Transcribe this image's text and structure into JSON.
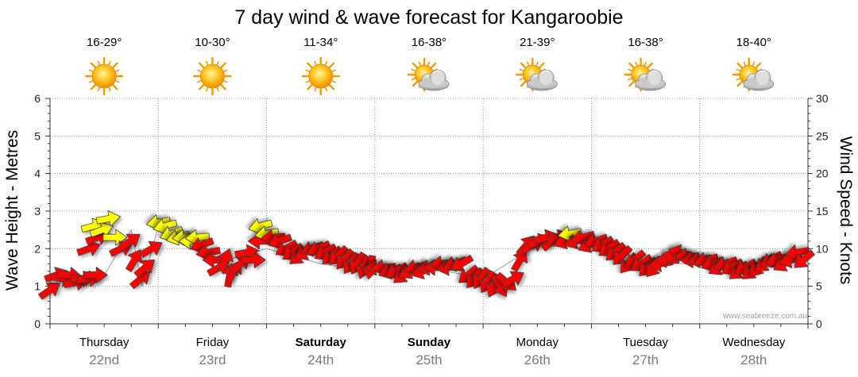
{
  "chart_data": {
    "type": "line",
    "title": "7 day wind & wave forecast for Kangaroobie",
    "ylabel_left": "Wave Height - Metres",
    "ylabel_right": "Wind Speed - Knots",
    "ylim_left": [
      0,
      6
    ],
    "ylim_right": [
      0,
      30
    ],
    "yticks_left": [
      "0",
      "1",
      "2",
      "3",
      "4",
      "5",
      "6"
    ],
    "yticks_right": [
      "0",
      "5",
      "10",
      "15",
      "20",
      "25",
      "30"
    ],
    "watermark": "www.seabreeze.com.au",
    "days": [
      {
        "name": "Thursday",
        "date": "22nd",
        "temp": "16-29°",
        "icon": "sun-icon",
        "weekend": false
      },
      {
        "name": "Friday",
        "date": "23rd",
        "temp": "10-30°",
        "icon": "sun-icon",
        "weekend": false
      },
      {
        "name": "Saturday",
        "date": "24th",
        "temp": "11-34°",
        "icon": "sun-icon",
        "weekend": true
      },
      {
        "name": "Sunday",
        "date": "25th",
        "temp": "16-38°",
        "icon": "sun-cloud-icon",
        "weekend": true
      },
      {
        "name": "Monday",
        "date": "26th",
        "temp": "21-39°",
        "icon": "sun-cloud-icon",
        "weekend": false
      },
      {
        "name": "Tuesday",
        "date": "27th",
        "temp": "16-38°",
        "icon": "sun-cloud-icon",
        "weekend": false
      },
      {
        "name": "Wednesday",
        "date": "28th",
        "temp": "18-40°",
        "icon": "sun-cloud-icon",
        "weekend": false
      }
    ],
    "wave_series": {
      "name": "Wave Height (m)",
      "x": [
        0,
        0.15,
        0.35,
        0.5,
        0.75,
        0.85,
        1.0,
        1.2,
        1.5,
        2.0,
        2.5,
        3.0,
        3.5,
        4.0,
        4.5,
        5.0,
        5.5,
        6.0,
        6.5,
        7.0
      ],
      "values": [
        0.9,
        1.4,
        1.1,
        1.3,
        2.5,
        1.0,
        2.6,
        2.3,
        1.6,
        2.0,
        1.6,
        1.4,
        1.5,
        1.2,
        2.1,
        2.0,
        1.6,
        1.6,
        1.4,
        1.7
      ]
    },
    "wind_series": {
      "name": "Wind Speed (knots)",
      "points": [
        {
          "day": 0.0,
          "speed": 4.5,
          "dir": -35,
          "color": "red"
        },
        {
          "day": 0.06,
          "speed": 6.5,
          "dir": -20,
          "color": "red"
        },
        {
          "day": 0.12,
          "speed": 6.0,
          "dir": 10,
          "color": "red"
        },
        {
          "day": 0.18,
          "speed": 6.5,
          "dir": 5,
          "color": "red"
        },
        {
          "day": 0.24,
          "speed": 5.5,
          "dir": -10,
          "color": "red"
        },
        {
          "day": 0.3,
          "speed": 6.0,
          "dir": 0,
          "color": "red"
        },
        {
          "day": 0.36,
          "speed": 6.0,
          "dir": -5,
          "color": "red"
        },
        {
          "day": 0.42,
          "speed": 6.5,
          "dir": 0,
          "color": "red"
        },
        {
          "day": 0.36,
          "speed": 10.0,
          "dir": -20,
          "color": "red"
        },
        {
          "day": 0.44,
          "speed": 11.5,
          "dir": -20,
          "color": "red"
        },
        {
          "day": 0.4,
          "speed": 13.0,
          "dir": -15,
          "color": "yellow"
        },
        {
          "day": 0.48,
          "speed": 12.5,
          "dir": -20,
          "color": "yellow"
        },
        {
          "day": 0.54,
          "speed": 14.0,
          "dir": -10,
          "color": "yellow"
        },
        {
          "day": 0.6,
          "speed": 11.5,
          "dir": 0,
          "color": "yellow"
        },
        {
          "day": 0.66,
          "speed": 10.0,
          "dir": -25,
          "color": "red"
        },
        {
          "day": 0.74,
          "speed": 11.0,
          "dir": -35,
          "color": "red"
        },
        {
          "day": 0.78,
          "speed": 8.5,
          "dir": -60,
          "color": "red"
        },
        {
          "day": 0.84,
          "speed": 6.0,
          "dir": -40,
          "color": "red"
        },
        {
          "day": 0.88,
          "speed": 7.5,
          "dir": -40,
          "color": "red"
        },
        {
          "day": 0.94,
          "speed": 10.0,
          "dir": -30,
          "color": "red"
        },
        {
          "day": 1.0,
          "speed": 13.5,
          "dir": 170,
          "color": "yellow"
        },
        {
          "day": 1.06,
          "speed": 13.0,
          "dir": 165,
          "color": "yellow"
        },
        {
          "day": 1.12,
          "speed": 12.0,
          "dir": 160,
          "color": "yellow"
        },
        {
          "day": 1.18,
          "speed": 11.5,
          "dir": 165,
          "color": "yellow"
        },
        {
          "day": 1.24,
          "speed": 11.5,
          "dir": 175,
          "color": "yellow"
        },
        {
          "day": 1.3,
          "speed": 11.0,
          "dir": 180,
          "color": "yellow"
        },
        {
          "day": 1.36,
          "speed": 11.5,
          "dir": 175,
          "color": "yellow"
        },
        {
          "day": 1.4,
          "speed": 10.5,
          "dir": 160,
          "color": "red"
        },
        {
          "day": 1.46,
          "speed": 9.5,
          "dir": 170,
          "color": "red"
        },
        {
          "day": 1.52,
          "speed": 8.5,
          "dir": 180,
          "color": "red"
        },
        {
          "day": 1.56,
          "speed": 7.5,
          "dir": -30,
          "color": "red"
        },
        {
          "day": 1.62,
          "speed": 8.5,
          "dir": -70,
          "color": "red"
        },
        {
          "day": 1.66,
          "speed": 6.5,
          "dir": -80,
          "color": "red"
        },
        {
          "day": 1.7,
          "speed": 7.0,
          "dir": -60,
          "color": "red"
        },
        {
          "day": 1.76,
          "speed": 8.0,
          "dir": -40,
          "color": "red"
        },
        {
          "day": 1.82,
          "speed": 9.5,
          "dir": -10,
          "color": "red"
        },
        {
          "day": 1.88,
          "speed": 8.5,
          "dir": 0,
          "color": "red"
        },
        {
          "day": 1.94,
          "speed": 11.0,
          "dir": 180,
          "color": "red"
        },
        {
          "day": 1.94,
          "speed": 13.0,
          "dir": 165,
          "color": "yellow"
        },
        {
          "day": 2.0,
          "speed": 12.0,
          "dir": 170,
          "color": "yellow"
        },
        {
          "day": 2.06,
          "speed": 11.5,
          "dir": 175,
          "color": "red"
        },
        {
          "day": 2.12,
          "speed": 11.0,
          "dir": 160,
          "color": "red"
        },
        {
          "day": 2.18,
          "speed": 10.0,
          "dir": 150,
          "color": "red"
        },
        {
          "day": 2.24,
          "speed": 9.5,
          "dir": 145,
          "color": "red"
        },
        {
          "day": 2.3,
          "speed": 9.0,
          "dir": 140,
          "color": "red"
        },
        {
          "day": 2.36,
          "speed": 9.5,
          "dir": 150,
          "color": "red"
        },
        {
          "day": 2.42,
          "speed": 10.0,
          "dir": 160,
          "color": "red"
        },
        {
          "day": 2.48,
          "speed": 10.0,
          "dir": 155,
          "color": "red"
        },
        {
          "day": 2.54,
          "speed": 9.5,
          "dir": 150,
          "color": "red"
        },
        {
          "day": 2.6,
          "speed": 9.0,
          "dir": 140,
          "color": "red"
        },
        {
          "day": 2.66,
          "speed": 9.0,
          "dir": 135,
          "color": "red"
        },
        {
          "day": 2.72,
          "speed": 8.5,
          "dir": 130,
          "color": "red"
        },
        {
          "day": 2.78,
          "speed": 8.0,
          "dir": 125,
          "color": "red"
        },
        {
          "day": 2.84,
          "speed": 8.0,
          "dir": 120,
          "color": "red"
        },
        {
          "day": 2.9,
          "speed": 7.5,
          "dir": 110,
          "color": "red"
        },
        {
          "day": 2.96,
          "speed": 7.5,
          "dir": 100,
          "color": "red"
        },
        {
          "day": 3.02,
          "speed": 7.5,
          "dir": 180,
          "color": "red"
        },
        {
          "day": 3.08,
          "speed": 7.5,
          "dir": 175,
          "color": "red"
        },
        {
          "day": 3.14,
          "speed": 7.0,
          "dir": 160,
          "color": "red"
        },
        {
          "day": 3.2,
          "speed": 7.0,
          "dir": 150,
          "color": "red"
        },
        {
          "day": 3.26,
          "speed": 6.5,
          "dir": 140,
          "color": "red"
        },
        {
          "day": 3.32,
          "speed": 7.0,
          "dir": 150,
          "color": "red"
        },
        {
          "day": 3.38,
          "speed": 7.5,
          "dir": 165,
          "color": "red"
        },
        {
          "day": 3.44,
          "speed": 7.0,
          "dir": 160,
          "color": "red"
        },
        {
          "day": 3.5,
          "speed": 7.5,
          "dir": 170,
          "color": "red"
        },
        {
          "day": 3.56,
          "speed": 7.5,
          "dir": 180,
          "color": "red"
        },
        {
          "day": 3.62,
          "speed": 8.0,
          "dir": 175,
          "color": "red"
        },
        {
          "day": 3.68,
          "speed": 7.5,
          "dir": 170,
          "color": "red"
        },
        {
          "day": 3.74,
          "speed": 8.0,
          "dir": 160,
          "color": "red"
        },
        {
          "day": 3.8,
          "speed": 8.0,
          "dir": 150,
          "color": "red"
        },
        {
          "day": 3.86,
          "speed": 6.5,
          "dir": 140,
          "color": "red"
        },
        {
          "day": 3.92,
          "speed": 6.0,
          "dir": 130,
          "color": "red"
        },
        {
          "day": 3.98,
          "speed": 6.0,
          "dir": 125,
          "color": "red"
        },
        {
          "day": 4.04,
          "speed": 5.5,
          "dir": 120,
          "color": "red"
        },
        {
          "day": 4.1,
          "speed": 5.0,
          "dir": 115,
          "color": "red"
        },
        {
          "day": 4.16,
          "speed": 5.0,
          "dir": 60,
          "color": "red"
        },
        {
          "day": 4.22,
          "speed": 5.5,
          "dir": 40,
          "color": "red"
        },
        {
          "day": 4.28,
          "speed": 6.0,
          "dir": -30,
          "color": "red"
        },
        {
          "day": 4.34,
          "speed": 8.5,
          "dir": -60,
          "color": "red"
        },
        {
          "day": 4.4,
          "speed": 10.5,
          "dir": -50,
          "color": "red"
        },
        {
          "day": 4.46,
          "speed": 10.5,
          "dir": -30,
          "color": "red"
        },
        {
          "day": 4.52,
          "speed": 11.0,
          "dir": -20,
          "color": "red"
        },
        {
          "day": 4.58,
          "speed": 11.5,
          "dir": -15,
          "color": "red"
        },
        {
          "day": 4.64,
          "speed": 11.0,
          "dir": -40,
          "color": "red"
        },
        {
          "day": 4.7,
          "speed": 11.5,
          "dir": -20,
          "color": "red"
        },
        {
          "day": 4.76,
          "speed": 11.0,
          "dir": 160,
          "color": "red"
        },
        {
          "day": 4.8,
          "speed": 12.0,
          "dir": 170,
          "color": "yellow"
        },
        {
          "day": 4.86,
          "speed": 11.0,
          "dir": 160,
          "color": "red"
        },
        {
          "day": 4.92,
          "speed": 11.5,
          "dir": 165,
          "color": "red"
        },
        {
          "day": 4.98,
          "speed": 10.5,
          "dir": 155,
          "color": "red"
        },
        {
          "day": 5.04,
          "speed": 11.0,
          "dir": 160,
          "color": "red"
        },
        {
          "day": 5.1,
          "speed": 10.5,
          "dir": 150,
          "color": "red"
        },
        {
          "day": 5.16,
          "speed": 10.0,
          "dir": 145,
          "color": "red"
        },
        {
          "day": 5.22,
          "speed": 9.5,
          "dir": 140,
          "color": "red"
        },
        {
          "day": 5.28,
          "speed": 9.0,
          "dir": 135,
          "color": "red"
        },
        {
          "day": 5.34,
          "speed": 8.0,
          "dir": 130,
          "color": "red"
        },
        {
          "day": 5.4,
          "speed": 8.5,
          "dir": 140,
          "color": "red"
        },
        {
          "day": 5.46,
          "speed": 8.0,
          "dir": 145,
          "color": "red"
        },
        {
          "day": 5.52,
          "speed": 7.5,
          "dir": 135,
          "color": "red"
        },
        {
          "day": 5.58,
          "speed": 7.5,
          "dir": 130,
          "color": "red"
        },
        {
          "day": 5.64,
          "speed": 8.0,
          "dir": 170,
          "color": "red"
        },
        {
          "day": 5.7,
          "speed": 8.5,
          "dir": 180,
          "color": "red"
        },
        {
          "day": 5.76,
          "speed": 9.0,
          "dir": -170,
          "color": "red"
        },
        {
          "day": 5.82,
          "speed": 9.5,
          "dir": -165,
          "color": "red"
        },
        {
          "day": 5.88,
          "speed": 9.0,
          "dir": 180,
          "color": "red"
        },
        {
          "day": 5.94,
          "speed": 8.5,
          "dir": 175,
          "color": "red"
        },
        {
          "day": 6.0,
          "speed": 8.5,
          "dir": 170,
          "color": "red"
        },
        {
          "day": 6.06,
          "speed": 8.5,
          "dir": 165,
          "color": "red"
        },
        {
          "day": 6.12,
          "speed": 8.0,
          "dir": 160,
          "color": "red"
        },
        {
          "day": 6.18,
          "speed": 7.5,
          "dir": 150,
          "color": "red"
        },
        {
          "day": 6.24,
          "speed": 8.0,
          "dir": 160,
          "color": "red"
        },
        {
          "day": 6.3,
          "speed": 7.5,
          "dir": 150,
          "color": "red"
        },
        {
          "day": 6.36,
          "speed": 7.0,
          "dir": 140,
          "color": "red"
        },
        {
          "day": 6.42,
          "speed": 7.5,
          "dir": 150,
          "color": "red"
        },
        {
          "day": 6.48,
          "speed": 7.0,
          "dir": 140,
          "color": "red"
        },
        {
          "day": 6.54,
          "speed": 7.5,
          "dir": 130,
          "color": "red"
        },
        {
          "day": 6.6,
          "speed": 8.0,
          "dir": 140,
          "color": "red"
        },
        {
          "day": 6.66,
          "speed": 8.5,
          "dir": 150,
          "color": "red"
        },
        {
          "day": 6.72,
          "speed": 8.5,
          "dir": 160,
          "color": "red"
        },
        {
          "day": 6.78,
          "speed": 8.0,
          "dir": 150,
          "color": "red"
        },
        {
          "day": 6.84,
          "speed": 8.5,
          "dir": 165,
          "color": "red"
        },
        {
          "day": 6.9,
          "speed": 9.5,
          "dir": 170,
          "color": "red"
        },
        {
          "day": 6.96,
          "speed": 8.5,
          "dir": 140,
          "color": "red"
        }
      ]
    }
  },
  "colors": {
    "wind_strong": "#ff0000",
    "wind_light": "#ffff00",
    "arrow_stroke": "#3a3a3a",
    "grid": "#9a9a9a",
    "axis": "#333333",
    "wave_line": "#a8a8a8",
    "date_text": "#7a7a7a",
    "watermark": "#a0a0a0"
  }
}
